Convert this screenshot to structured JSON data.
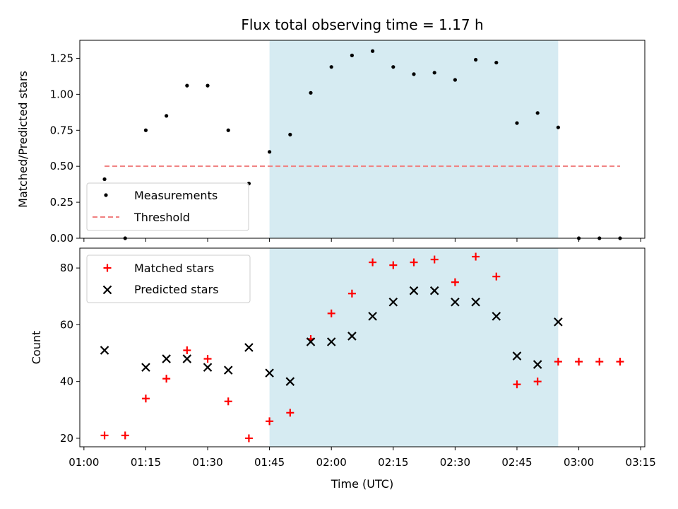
{
  "chart_data": [
    {
      "type": "scatter",
      "title": "Flux total observing time = 1.17 h",
      "ylabel": "Matched/Predicted stars",
      "xlabel": "",
      "xlim": [
        "00:59:00",
        "03:16:00"
      ],
      "ylim": [
        0,
        1.375
      ],
      "yticks": [
        "0.00",
        "0.25",
        "0.50",
        "0.75",
        "1.00",
        "1.25"
      ],
      "legend_position": "lower-left",
      "shaded_span": [
        "01:45",
        "02:55"
      ],
      "shade_color": "#add8e6",
      "series": [
        {
          "name": "Measurements",
          "marker": "dot",
          "color": "#000000",
          "x": [
            "01:05",
            "01:10",
            "01:15",
            "01:20",
            "01:25",
            "01:30",
            "01:35",
            "01:40",
            "01:45",
            "01:50",
            "01:55",
            "02:00",
            "02:05",
            "02:10",
            "02:15",
            "02:20",
            "02:25",
            "02:30",
            "02:35",
            "02:40",
            "02:45",
            "02:50",
            "02:55",
            "03:00",
            "03:05",
            "03:10"
          ],
          "values": [
            0.41,
            0.0,
            0.75,
            0.85,
            1.06,
            1.06,
            0.75,
            0.38,
            0.6,
            0.72,
            1.01,
            1.19,
            1.27,
            1.3,
            1.19,
            1.14,
            1.15,
            1.1,
            1.24,
            1.22,
            0.8,
            0.87,
            0.77,
            0.0,
            0.0,
            0.0
          ]
        },
        {
          "name": "Threshold",
          "kind": "dashed-line",
          "color": "#f08080",
          "x": [
            "01:05",
            "03:10"
          ],
          "values": [
            0.5,
            0.5
          ]
        }
      ]
    },
    {
      "type": "scatter",
      "ylabel": "Count",
      "xlabel": "Time (UTC)",
      "xlim": [
        "00:59:00",
        "03:16:00"
      ],
      "xticks": [
        "01:00",
        "01:15",
        "01:30",
        "01:45",
        "02:00",
        "02:15",
        "02:30",
        "02:45",
        "03:00",
        "03:15"
      ],
      "ylim": [
        17,
        87
      ],
      "yticks": [
        "20",
        "40",
        "60",
        "80"
      ],
      "legend_position": "upper-left",
      "shaded_span": [
        "01:45",
        "02:55"
      ],
      "shade_color": "#add8e6",
      "series": [
        {
          "name": "Matched stars",
          "marker": "plus",
          "color": "#ff0000",
          "x": [
            "01:05",
            "01:10",
            "01:15",
            "01:20",
            "01:25",
            "01:30",
            "01:35",
            "01:40",
            "01:45",
            "01:50",
            "01:55",
            "02:00",
            "02:05",
            "02:10",
            "02:15",
            "02:20",
            "02:25",
            "02:30",
            "02:35",
            "02:40",
            "02:45",
            "02:50",
            "02:55",
            "03:00",
            "03:05",
            "03:10"
          ],
          "values": [
            21,
            21,
            34,
            41,
            51,
            48,
            33,
            20,
            26,
            29,
            55,
            64,
            71,
            82,
            81,
            82,
            83,
            75,
            84,
            77,
            39,
            40,
            47,
            47,
            47,
            47
          ]
        },
        {
          "name": "Predicted stars",
          "marker": "x",
          "color": "#000000",
          "x": [
            "01:05",
            "01:15",
            "01:20",
            "01:25",
            "01:30",
            "01:35",
            "01:40",
            "01:45",
            "01:50",
            "01:55",
            "02:00",
            "02:05",
            "02:10",
            "02:15",
            "02:20",
            "02:25",
            "02:30",
            "02:35",
            "02:40",
            "02:45",
            "02:50",
            "02:55"
          ],
          "values": [
            51,
            45,
            48,
            48,
            45,
            44,
            52,
            43,
            40,
            54,
            54,
            56,
            63,
            68,
            72,
            72,
            68,
            68,
            63,
            49,
            46,
            61
          ]
        }
      ]
    }
  ]
}
